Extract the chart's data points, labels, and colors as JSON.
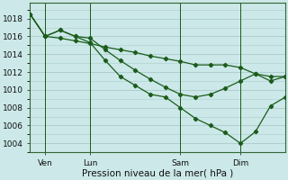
{
  "background_color": "#cce8e8",
  "grid_color": "#aacccc",
  "line_color": "#1a5c1a",
  "title": "Pression niveau de la mer( hPa )",
  "ylabel_values": [
    1004,
    1006,
    1008,
    1010,
    1012,
    1014,
    1016,
    1018
  ],
  "ylim": [
    1003.0,
    1019.8
  ],
  "xtick_labels": [
    "Ven",
    "Lun",
    "Sam",
    "Dim"
  ],
  "xtick_positions": [
    1,
    4,
    10,
    14
  ],
  "vline_positions": [
    1,
    4,
    10,
    14
  ],
  "xlim": [
    0,
    17
  ],
  "line1_x": [
    0,
    1,
    2,
    3,
    4,
    5,
    6,
    7,
    8,
    9,
    10,
    11,
    12,
    13,
    14,
    15,
    16,
    17
  ],
  "line1_y": [
    1018.5,
    1016.0,
    1015.8,
    1015.5,
    1015.2,
    1014.8,
    1014.5,
    1014.2,
    1013.8,
    1013.5,
    1013.2,
    1012.8,
    1012.8,
    1012.8,
    1012.5,
    1011.8,
    1011.5,
    1011.5
  ],
  "line2_x": [
    0,
    1,
    2,
    3,
    4,
    5,
    6,
    7,
    8,
    9,
    10,
    11,
    12,
    13,
    14,
    15,
    16,
    17
  ],
  "line2_y": [
    1018.5,
    1016.0,
    1016.7,
    1016.0,
    1015.8,
    1014.5,
    1013.3,
    1012.2,
    1011.2,
    1010.3,
    1009.5,
    1009.2,
    1009.5,
    1010.2,
    1011.0,
    1011.8,
    1011.0,
    1011.5
  ],
  "line3_x": [
    0,
    1,
    2,
    3,
    4,
    5,
    6,
    7,
    8,
    9,
    10,
    11,
    12,
    13,
    14,
    15,
    16,
    17
  ],
  "line3_y": [
    1018.5,
    1016.0,
    1016.7,
    1016.0,
    1015.3,
    1013.3,
    1011.5,
    1010.5,
    1009.5,
    1009.2,
    1008.0,
    1006.8,
    1006.0,
    1005.2,
    1004.0,
    1005.3,
    1008.2,
    1009.2
  ],
  "ms": 2.2,
  "lw": 0.9
}
